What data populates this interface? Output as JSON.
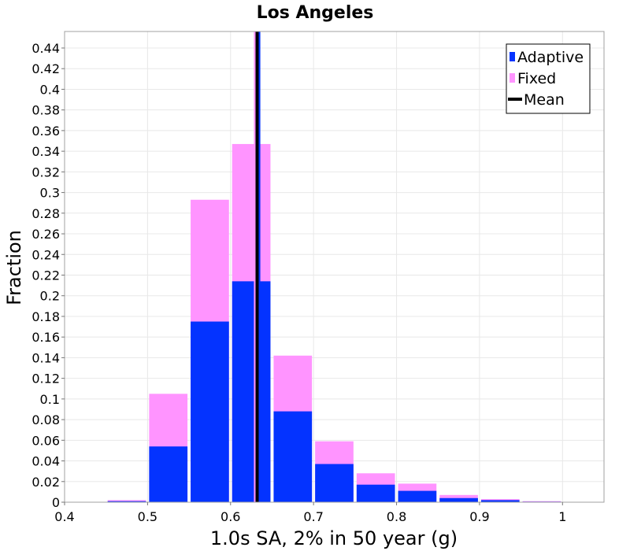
{
  "chart_data": {
    "type": "bar",
    "title": "Los Angeles",
    "xlabel": "1.0s SA, 2% in 50 year (g)",
    "ylabel": "Fraction",
    "xlim": [
      0.4,
      1.05
    ],
    "ylim": [
      0,
      0.456
    ],
    "xticks": [
      "0.4",
      "0.5",
      "0.6",
      "0.7",
      "0.8",
      "0.9",
      "1"
    ],
    "yticks": [
      "0",
      "0.02",
      "0.04",
      "0.06",
      "0.08",
      "0.1",
      "0.12",
      "0.14",
      "0.16",
      "0.18",
      "0.2",
      "0.22",
      "0.24",
      "0.26",
      "0.28",
      "0.3",
      "0.32",
      "0.34",
      "0.36",
      "0.38",
      "0.4",
      "0.42",
      "0.44"
    ],
    "bin_width": 0.05,
    "bins": [
      0.475,
      0.525,
      0.575,
      0.625,
      0.675,
      0.725,
      0.775,
      0.825,
      0.875,
      0.925,
      0.975
    ],
    "series": [
      {
        "name": "Adaptive",
        "color": "#0433ff",
        "values": [
          0.001,
          0.054,
          0.175,
          0.214,
          0.088,
          0.037,
          0.017,
          0.011,
          0.004,
          0.002,
          0.0005
        ]
      },
      {
        "name": "Fixed",
        "color": "#ff94ff",
        "values": [
          0.002,
          0.105,
          0.293,
          0.347,
          0.142,
          0.059,
          0.028,
          0.018,
          0.007,
          0.003,
          0.001
        ]
      }
    ],
    "means": [
      {
        "name": "Fixed mean",
        "color": "#ff94ff",
        "value": 0.6305
      },
      {
        "name": "Adaptive mean",
        "color": "#0433ff",
        "value": 0.6335
      },
      {
        "name": "Mean",
        "color": "#000000",
        "value": 0.632
      }
    ],
    "legend": {
      "position": "top-right",
      "items": [
        {
          "label": "Adaptive",
          "color": "#0433ff",
          "kind": "bar"
        },
        {
          "label": "Fixed",
          "color": "#ff94ff",
          "kind": "bar"
        },
        {
          "label": "Mean",
          "color": "#000000",
          "kind": "line"
        }
      ]
    },
    "grid": true
  }
}
